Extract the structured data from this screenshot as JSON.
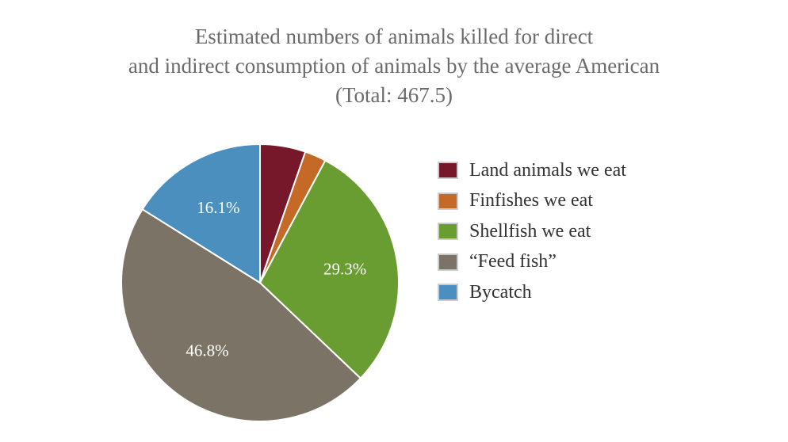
{
  "chart_data": {
    "type": "pie",
    "title_lines": [
      "Estimated numbers of animals killed for direct",
      "and indirect consumption of animals by the average American",
      "(Total: 467.5)"
    ],
    "slices": [
      {
        "label": "Land animals we eat",
        "percent": 5.3,
        "color": "#77172a",
        "data_label": ""
      },
      {
        "label": "Finfishes we eat",
        "percent": 2.5,
        "color": "#c56a26",
        "data_label": ""
      },
      {
        "label": "Shellfish we eat",
        "percent": 29.3,
        "color": "#699d32",
        "data_label": "29.3%"
      },
      {
        "label": "“Feed fish”",
        "percent": 46.8,
        "color": "#7b7466",
        "data_label": "46.8%"
      },
      {
        "label": "Bycatch",
        "percent": 16.1,
        "color": "#4a8fbd",
        "data_label": "16.1%"
      }
    ],
    "legend_position": "right"
  }
}
